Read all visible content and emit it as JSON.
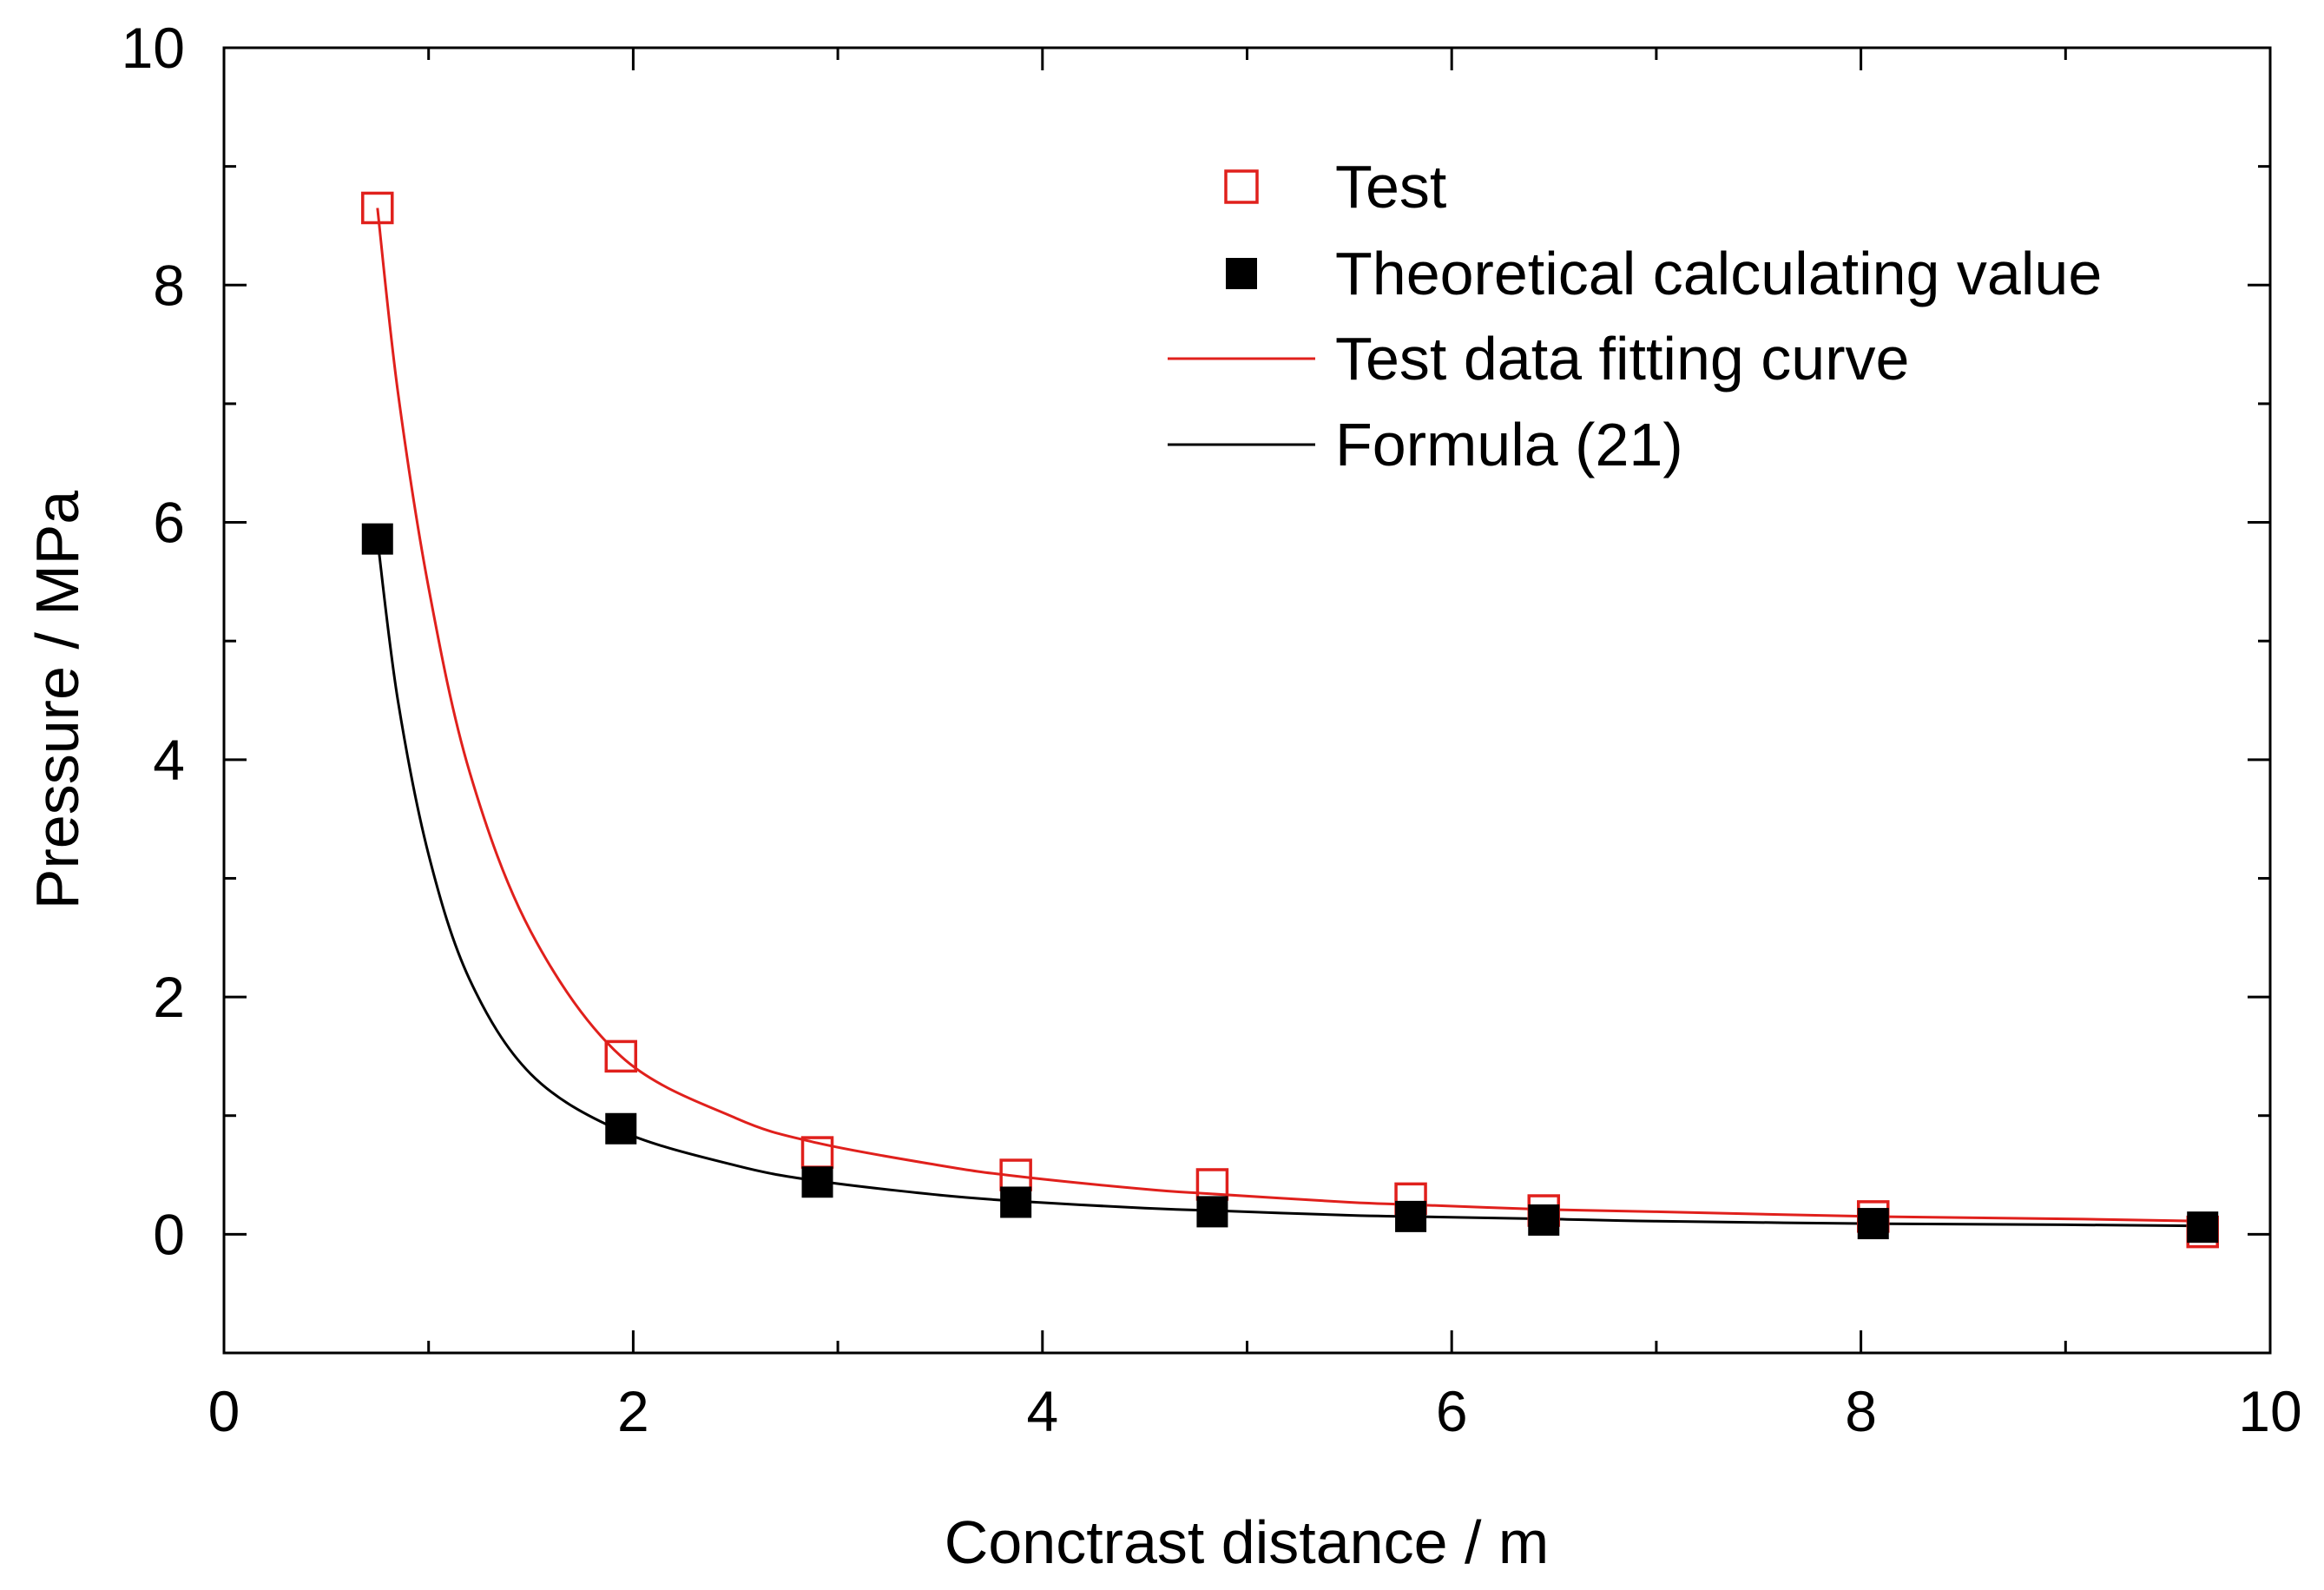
{
  "chart_data": {
    "type": "scatter",
    "title": "",
    "xlabel": "Conctrast distance / m",
    "ylabel": "Pressure / MPa",
    "xlim": [
      0,
      10
    ],
    "ylim": [
      -1,
      10
    ],
    "xticks": [
      0,
      2,
      4,
      6,
      8,
      10
    ],
    "yticks": [
      0,
      2,
      4,
      6,
      8,
      10
    ],
    "xticks_minor": [
      1,
      3,
      5,
      7,
      9
    ],
    "yticks_minor": [
      -1,
      1,
      3,
      5,
      7,
      9
    ],
    "legend_position": "top-right",
    "series": [
      {
        "name": "Test",
        "kind": "markers",
        "marker": "open-square",
        "color": "#e0201c",
        "x": [
          0.75,
          1.94,
          2.9,
          3.87,
          4.83,
          5.8,
          6.45,
          8.06,
          9.67
        ],
        "y": [
          8.65,
          1.5,
          0.69,
          0.5,
          0.42,
          0.3,
          0.2,
          0.15,
          0.02
        ]
      },
      {
        "name": "Theoretical calculating value",
        "kind": "markers",
        "marker": "filled-square",
        "color": "#000000",
        "x": [
          0.75,
          1.94,
          2.9,
          3.87,
          4.83,
          5.8,
          6.45,
          8.06,
          9.67
        ],
        "y": [
          5.86,
          0.89,
          0.44,
          0.27,
          0.19,
          0.15,
          0.12,
          0.09,
          0.06
        ]
      },
      {
        "name": "Test data fitting curve",
        "kind": "line",
        "color": "#e0201c",
        "x": [
          0.75,
          0.85,
          1.0,
          1.2,
          1.5,
          1.94,
          2.5,
          2.9,
          3.5,
          3.87,
          4.5,
          4.83,
          5.5,
          5.8,
          6.45,
          7.0,
          8.06,
          9.0,
          9.67
        ],
        "y": [
          8.65,
          7.1,
          5.45,
          3.9,
          2.55,
          1.5,
          0.98,
          0.77,
          0.58,
          0.49,
          0.38,
          0.34,
          0.27,
          0.25,
          0.21,
          0.19,
          0.15,
          0.13,
          0.11
        ]
      },
      {
        "name": "Formula (21)",
        "kind": "line",
        "color": "#000000",
        "x": [
          0.75,
          0.85,
          1.0,
          1.2,
          1.5,
          1.94,
          2.5,
          2.9,
          3.5,
          3.87,
          4.5,
          4.83,
          5.5,
          5.8,
          6.45,
          7.0,
          8.06,
          9.0,
          9.67
        ],
        "y": [
          5.86,
          4.5,
          3.2,
          2.15,
          1.35,
          0.87,
          0.58,
          0.45,
          0.33,
          0.28,
          0.22,
          0.2,
          0.16,
          0.15,
          0.13,
          0.11,
          0.09,
          0.08,
          0.07
        ]
      }
    ]
  }
}
